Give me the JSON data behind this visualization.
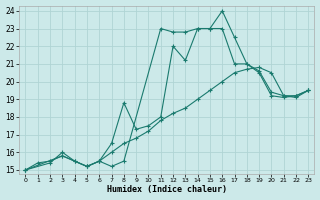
{
  "xlabel": "Humidex (Indice chaleur)",
  "bg_color": "#cce9e9",
  "grid_color": "#b0d4d4",
  "line_color": "#1a7a6e",
  "xlim": [
    -0.5,
    23.5
  ],
  "ylim": [
    14.8,
    24.3
  ],
  "xticks": [
    0,
    1,
    2,
    3,
    4,
    5,
    6,
    7,
    8,
    9,
    10,
    11,
    12,
    13,
    14,
    15,
    16,
    17,
    18,
    19,
    20,
    21,
    22,
    23
  ],
  "yticks": [
    15,
    16,
    17,
    18,
    19,
    20,
    21,
    22,
    23,
    24
  ],
  "line1_x": [
    0,
    1,
    2,
    3,
    4,
    5,
    6,
    7,
    8,
    11,
    12,
    13,
    14,
    15,
    16,
    17,
    18,
    19,
    20,
    21,
    22,
    23
  ],
  "line1_y": [
    15,
    15.4,
    15.5,
    15.8,
    15.5,
    15.2,
    15.5,
    15.2,
    15.5,
    23.0,
    22.8,
    22.8,
    23.0,
    23.0,
    24.0,
    22.5,
    21.0,
    20.5,
    19.2,
    19.1,
    19.2,
    19.5
  ],
  "line2_x": [
    0,
    2,
    3,
    4,
    5,
    6,
    7,
    8,
    9,
    10,
    11,
    12,
    13,
    14,
    15,
    16,
    17,
    18,
    19,
    20,
    21,
    22,
    23
  ],
  "line2_y": [
    15,
    15.4,
    16.0,
    15.5,
    15.2,
    15.5,
    16.5,
    18.8,
    17.3,
    17.5,
    18.0,
    22.0,
    21.2,
    23.0,
    23.0,
    23.0,
    21.0,
    21.0,
    20.6,
    19.4,
    19.2,
    19.1,
    19.5
  ],
  "line3_x": [
    0,
    3,
    5,
    6,
    7,
    8,
    9,
    10,
    11,
    12,
    13,
    14,
    15,
    16,
    17,
    18,
    19,
    20,
    21,
    22,
    23
  ],
  "line3_y": [
    15,
    15.8,
    15.2,
    15.5,
    16.0,
    16.5,
    16.8,
    17.2,
    17.8,
    18.2,
    18.5,
    19.0,
    19.5,
    20.0,
    20.5,
    20.7,
    20.8,
    20.5,
    19.2,
    19.2,
    19.5
  ]
}
